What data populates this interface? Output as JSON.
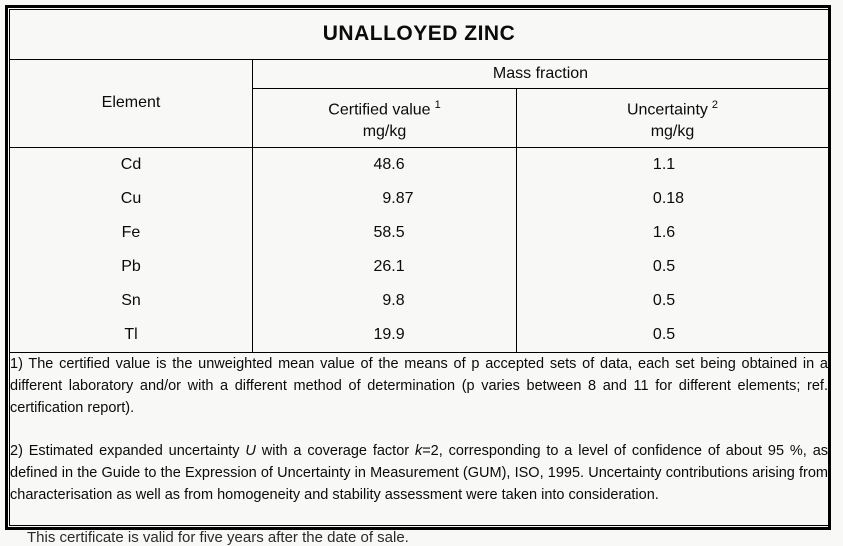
{
  "title": "UNALLOYED ZINC",
  "table": {
    "header": {
      "element": "Element",
      "mass_fraction": "Mass fraction",
      "certified_value": "Certified value",
      "certified_value_sup": "1",
      "certified_unit": "mg/kg",
      "uncertainty": "Uncertainty",
      "uncertainty_sup": "2",
      "uncertainty_unit": "mg/kg"
    },
    "rows": [
      {
        "element": "Cd",
        "certified_value": "48.6",
        "uncertainty": "1.1"
      },
      {
        "element": "Cu",
        "certified_value": "9.87",
        "uncertainty": "0.18"
      },
      {
        "element": "Fe",
        "certified_value": "58.5",
        "uncertainty": "1.6"
      },
      {
        "element": "Pb",
        "certified_value": "26.1",
        "uncertainty": "0.5"
      },
      {
        "element": "Sn",
        "certified_value": "9.8",
        "uncertainty": "0.5"
      },
      {
        "element": "Tl",
        "certified_value": "19.9",
        "uncertainty": "0.5"
      }
    ]
  },
  "footnotes": {
    "note1": "1) The certified value is the unweighted mean value of the means of p accepted sets of data, each set being obtained in a different laboratory and/or with a different method of determination (p varies between 8 and 11 for different elements; ref. certification report).",
    "note2_segments": [
      {
        "text": "2) Estimated expanded uncertainty "
      },
      {
        "text": "U",
        "italic": true
      },
      {
        "text": " with a coverage factor "
      },
      {
        "text": "k",
        "italic": true
      },
      {
        "text": "=2, corresponding to a level of confidence of about 95 %, as defined in the Guide to the Expression of Uncertainty in Measurement (GUM), ISO, 1995. Uncertainty contributions arising from characterisation as well as from homogeneity and stability assessment were taken into consideration."
      }
    ]
  },
  "cutoff_text": "This certificate is valid for five years after the date of sale.",
  "colors": {
    "border": "#000000",
    "background": "#f8f8f6",
    "text": "#0b0b0b"
  }
}
